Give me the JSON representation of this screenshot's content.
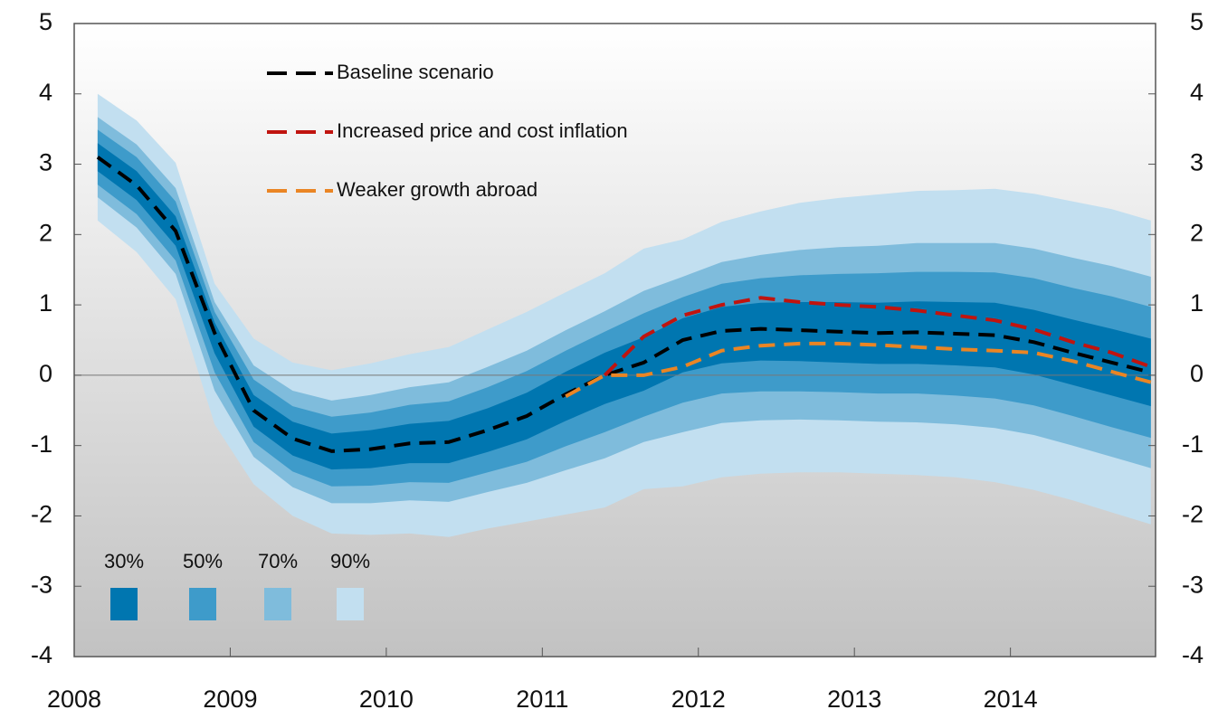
{
  "chart_data": {
    "type": "fan",
    "x": [
      2008.15,
      2008.4,
      2008.65,
      2008.9,
      2009.15,
      2009.4,
      2009.65,
      2009.9,
      2010.15,
      2010.4,
      2010.65,
      2010.9,
      2011.15,
      2011.4,
      2011.65,
      2011.9,
      2012.15,
      2012.4,
      2012.65,
      2012.9,
      2013.15,
      2013.4,
      2013.65,
      2013.9,
      2014.15,
      2014.4,
      2014.65,
      2014.9
    ],
    "xlim": [
      2008,
      2014.93
    ],
    "xticks": [
      2008,
      2009,
      2010,
      2011,
      2012,
      2013,
      2014
    ],
    "ylim": [
      -4,
      5
    ],
    "yticks": [
      -4,
      -3,
      -2,
      -1,
      0,
      1,
      2,
      3,
      4,
      5
    ],
    "bands": [
      {
        "name": "90%",
        "color": "#c2dff0",
        "upper": [
          4.0,
          3.62,
          3.02,
          1.3,
          0.52,
          0.18,
          0.07,
          0.17,
          0.3,
          0.4,
          0.65,
          0.9,
          1.18,
          1.45,
          1.8,
          1.93,
          2.18,
          2.33,
          2.45,
          2.52,
          2.57,
          2.62,
          2.63,
          2.65,
          2.58,
          2.47,
          2.36,
          2.2
        ],
        "lower": [
          2.2,
          1.75,
          1.08,
          -0.7,
          -1.55,
          -2.0,
          -2.25,
          -2.27,
          -2.25,
          -2.3,
          -2.18,
          -2.08,
          -1.98,
          -1.88,
          -1.62,
          -1.58,
          -1.45,
          -1.4,
          -1.38,
          -1.38,
          -1.4,
          -1.42,
          -1.45,
          -1.52,
          -1.63,
          -1.78,
          -1.95,
          -2.12
        ]
      },
      {
        "name": "70%",
        "color": "#7fbcdc",
        "upper": [
          3.67,
          3.28,
          2.66,
          1.04,
          0.14,
          -0.22,
          -0.36,
          -0.28,
          -0.17,
          -0.1,
          0.12,
          0.35,
          0.64,
          0.91,
          1.2,
          1.4,
          1.61,
          1.71,
          1.78,
          1.82,
          1.84,
          1.88,
          1.88,
          1.88,
          1.8,
          1.67,
          1.55,
          1.4
        ],
        "lower": [
          2.53,
          2.1,
          1.44,
          -0.22,
          -1.16,
          -1.59,
          -1.82,
          -1.82,
          -1.78,
          -1.8,
          -1.66,
          -1.53,
          -1.35,
          -1.18,
          -0.95,
          -0.81,
          -0.68,
          -0.64,
          -0.63,
          -0.64,
          -0.66,
          -0.67,
          -0.7,
          -0.75,
          -0.85,
          -1.0,
          -1.16,
          -1.32
        ]
      },
      {
        "name": "50%",
        "color": "#3e9bca",
        "upper": [
          3.49,
          3.1,
          2.47,
          0.9,
          -0.06,
          -0.44,
          -0.59,
          -0.53,
          -0.42,
          -0.37,
          -0.17,
          0.06,
          0.35,
          0.62,
          0.88,
          1.11,
          1.3,
          1.38,
          1.42,
          1.44,
          1.45,
          1.47,
          1.47,
          1.46,
          1.38,
          1.24,
          1.12,
          0.97
        ],
        "lower": [
          2.71,
          2.29,
          1.63,
          0.04,
          -0.95,
          -1.37,
          -1.58,
          -1.57,
          -1.52,
          -1.53,
          -1.38,
          -1.23,
          -1.01,
          -0.81,
          -0.59,
          -0.39,
          -0.26,
          -0.23,
          -0.23,
          -0.24,
          -0.26,
          -0.26,
          -0.29,
          -0.33,
          -0.43,
          -0.58,
          -0.74,
          -0.89
        ]
      },
      {
        "name": "30%",
        "color": "#0076b0",
        "upper": [
          3.3,
          2.9,
          2.26,
          0.75,
          -0.28,
          -0.66,
          -0.83,
          -0.78,
          -0.69,
          -0.65,
          -0.47,
          -0.25,
          0.05,
          0.32,
          0.54,
          0.81,
          0.97,
          1.03,
          1.04,
          1.04,
          1.03,
          1.05,
          1.04,
          1.03,
          0.93,
          0.79,
          0.66,
          0.52
        ],
        "lower": [
          2.9,
          2.49,
          1.84,
          0.31,
          -0.73,
          -1.14,
          -1.34,
          -1.32,
          -1.25,
          -1.25,
          -1.09,
          -0.91,
          -0.65,
          -0.41,
          -0.22,
          0.04,
          0.17,
          0.21,
          0.2,
          0.18,
          0.16,
          0.16,
          0.14,
          0.11,
          0.01,
          -0.14,
          -0.29,
          -0.44
        ]
      }
    ],
    "series": [
      {
        "name": "Baseline scenario",
        "color": "#000000",
        "values": [
          3.1,
          2.7,
          2.05,
          0.6,
          -0.5,
          -0.9,
          -1.08,
          -1.05,
          -0.97,
          -0.95,
          -0.78,
          -0.58,
          -0.27,
          0.0,
          0.18,
          0.5,
          0.63,
          0.66,
          0.64,
          0.62,
          0.6,
          0.61,
          0.59,
          0.57,
          0.47,
          0.32,
          0.18,
          0.04
        ]
      },
      {
        "name": "Increased price and cost inflation",
        "color": "#c0140f",
        "values": [
          null,
          null,
          null,
          null,
          null,
          null,
          null,
          null,
          null,
          null,
          null,
          null,
          null,
          0.0,
          0.55,
          0.85,
          1.0,
          1.1,
          1.04,
          1.0,
          0.97,
          0.92,
          0.85,
          0.78,
          0.65,
          0.47,
          0.32,
          0.12
        ]
      },
      {
        "name": "Weaker growth abroad",
        "color": "#ea8524",
        "values": [
          null,
          null,
          null,
          null,
          null,
          null,
          null,
          null,
          null,
          null,
          null,
          null,
          -0.3,
          0.0,
          0.0,
          0.12,
          0.35,
          0.42,
          0.45,
          0.45,
          0.43,
          0.4,
          0.37,
          0.35,
          0.32,
          0.2,
          0.05,
          -0.1
        ]
      }
    ],
    "zero_line": true
  }
}
